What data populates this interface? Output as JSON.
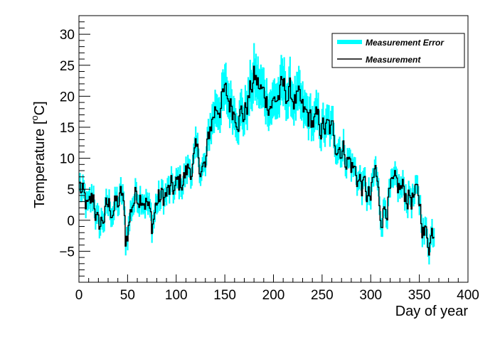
{
  "chart_data": {
    "type": "line",
    "title": "",
    "xlabel": "Day of year",
    "ylabel_main": "Temperature [",
    "ylabel_sup": "o",
    "ylabel_tail": "C]",
    "xlim": [
      0,
      400
    ],
    "ylim": [
      -10,
      33
    ],
    "x_ticks": [
      0,
      50,
      100,
      150,
      200,
      250,
      300,
      350,
      400
    ],
    "y_ticks": [
      -5,
      0,
      5,
      10,
      15,
      20,
      25,
      30
    ],
    "x_tick_labels": [
      "0",
      "50",
      "100",
      "150",
      "200",
      "250",
      "300",
      "350",
      "400"
    ],
    "y_tick_labels": [
      "−5",
      "0",
      "5",
      "10",
      "15",
      "20",
      "25",
      "30"
    ],
    "grid": false,
    "legend_position": "top-right",
    "series": [
      {
        "name": "Measurement Error",
        "kind": "error-band",
        "color": "#00ffff"
      },
      {
        "name": "Measurement",
        "kind": "line",
        "color": "#000000"
      }
    ],
    "x": [
      1,
      365
    ],
    "anchors": {
      "days": [
        1,
        5,
        10,
        15,
        20,
        25,
        30,
        40,
        45,
        48,
        55,
        60,
        65,
        70,
        75,
        80,
        90,
        100,
        110,
        120,
        130,
        135,
        140,
        150,
        160,
        170,
        180,
        190,
        200,
        210,
        220,
        225,
        230,
        240,
        250,
        260,
        270,
        280,
        290,
        300,
        305,
        310,
        320,
        330,
        340,
        350,
        355,
        360,
        365
      ],
      "values": [
        5.5,
        3,
        1,
        4,
        -1.5,
        0.5,
        2,
        2.5,
        4,
        -3.5,
        3,
        4.5,
        5,
        3,
        -1,
        3,
        4,
        5,
        7.5,
        10,
        8,
        15,
        18,
        20,
        18,
        17,
        23,
        20,
        19,
        21,
        20,
        19,
        17,
        16,
        15,
        14,
        12,
        9,
        6,
        3,
        8,
        1,
        4,
        5,
        4,
        3,
        -2,
        -3,
        -1
      ]
    },
    "error_halfwidth_fraction": 0.15,
    "error_halfwidth_min": 1.5
  }
}
